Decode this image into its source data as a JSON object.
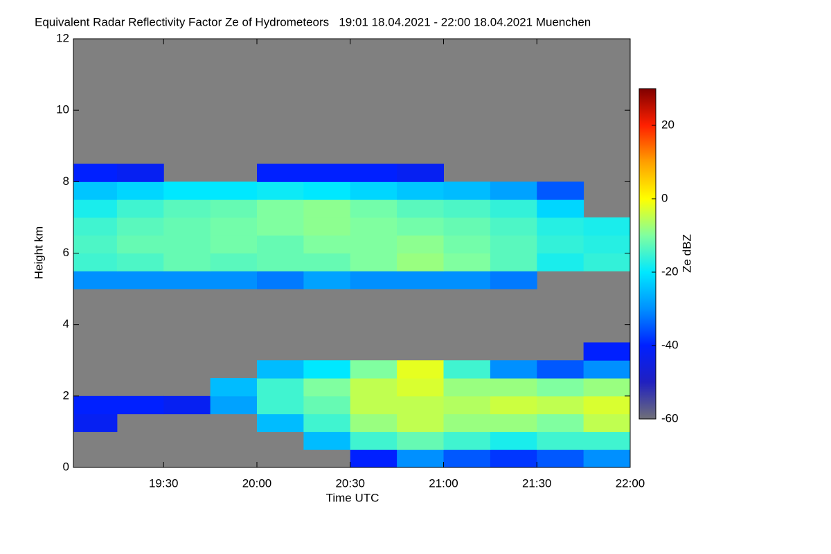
{
  "chart_data": {
    "type": "heatmap",
    "title": "Equivalent Radar Reflectivity Factor Ze of Hydrometeors   19:01 18.04.2021 - 22:00 18.04.2021 Muenchen",
    "x_label": "Time UTC",
    "y_label": "Height km",
    "colorbar_label": "Ze dBZ",
    "xlim": [
      1141,
      1320
    ],
    "xticks": [
      {
        "value": 1170,
        "label": "19:30"
      },
      {
        "value": 1200,
        "label": "20:00"
      },
      {
        "value": 1230,
        "label": "20:30"
      },
      {
        "value": 1260,
        "label": "21:00"
      },
      {
        "value": 1290,
        "label": "21:30"
      },
      {
        "value": 1320,
        "label": "22:00"
      }
    ],
    "ylim": [
      0,
      12
    ],
    "yticks": [
      0,
      2,
      4,
      6,
      8,
      10,
      12
    ],
    "zlim": [
      -60,
      30
    ],
    "zticks": [
      -60,
      -40,
      -20,
      0,
      20
    ],
    "colormap": [
      "#707078",
      "#2020c0",
      "#0020ff",
      "#0090ff",
      "#00e8ff",
      "#80ffa0",
      "#ffff00",
      "#ffa000",
      "#ff2000",
      "#800000"
    ],
    "missing_color": "#808080",
    "x_bins": [
      1141,
      1155,
      1170,
      1185,
      1200,
      1215,
      1230,
      1245,
      1260,
      1275,
      1290,
      1305,
      1320
    ],
    "y_bins": [
      0,
      0.5,
      1,
      1.5,
      2,
      2.5,
      3,
      3.5,
      4,
      4.5,
      5,
      5.5,
      6,
      6.5,
      7,
      7.5,
      8,
      8.5
    ],
    "z": [
      [
        null,
        null,
        null,
        null,
        null,
        null,
        -40,
        -30,
        -35,
        -38,
        -35,
        -30
      ],
      [
        null,
        null,
        null,
        null,
        null,
        -25,
        -15,
        -12,
        -15,
        -18,
        -15,
        -15
      ],
      [
        -42,
        null,
        null,
        null,
        -25,
        -15,
        -8,
        -5,
        -8,
        -8,
        -10,
        -5
      ],
      [
        -40,
        -40,
        -42,
        -28,
        -15,
        -12,
        -5,
        -5,
        -6,
        -4,
        -5,
        -3
      ],
      [
        null,
        null,
        null,
        -25,
        -15,
        -10,
        -5,
        -3,
        -8,
        -8,
        -10,
        -8
      ],
      [
        null,
        null,
        null,
        null,
        -25,
        -20,
        -10,
        -2,
        -15,
        -30,
        -35,
        -30
      ],
      [
        null,
        null,
        null,
        null,
        null,
        null,
        null,
        null,
        null,
        null,
        null,
        -40
      ],
      [
        null,
        null,
        null,
        null,
        null,
        null,
        null,
        null,
        null,
        null,
        null,
        null
      ],
      [
        null,
        null,
        null,
        null,
        null,
        null,
        null,
        null,
        null,
        null,
        null,
        null
      ],
      [
        null,
        null,
        null,
        null,
        null,
        null,
        null,
        null,
        null,
        null,
        null,
        null
      ],
      [
        -30,
        -30,
        -30,
        -30,
        -32,
        -28,
        -30,
        -30,
        -30,
        -32,
        null,
        null
      ],
      [
        -15,
        -14,
        -12,
        -13,
        -12,
        -12,
        -10,
        -8,
        -10,
        -13,
        -18,
        -16
      ],
      [
        -14,
        -12,
        -12,
        -11,
        -12,
        -10,
        -10,
        -9,
        -11,
        -13,
        -16,
        -17
      ],
      [
        -15,
        -13,
        -12,
        -11,
        -10,
        -9,
        -10,
        -11,
        -12,
        -14,
        -17,
        -18
      ],
      [
        -18,
        -15,
        -13,
        -12,
        -10,
        -9,
        -11,
        -13,
        -14,
        -16,
        -22,
        null
      ],
      [
        -24,
        -22,
        -20,
        -20,
        -19,
        -20,
        -22,
        -24,
        -25,
        -28,
        -35,
        null
      ],
      [
        -40,
        -42,
        null,
        null,
        -40,
        -40,
        -40,
        -42,
        null,
        null,
        null,
        null
      ]
    ]
  }
}
